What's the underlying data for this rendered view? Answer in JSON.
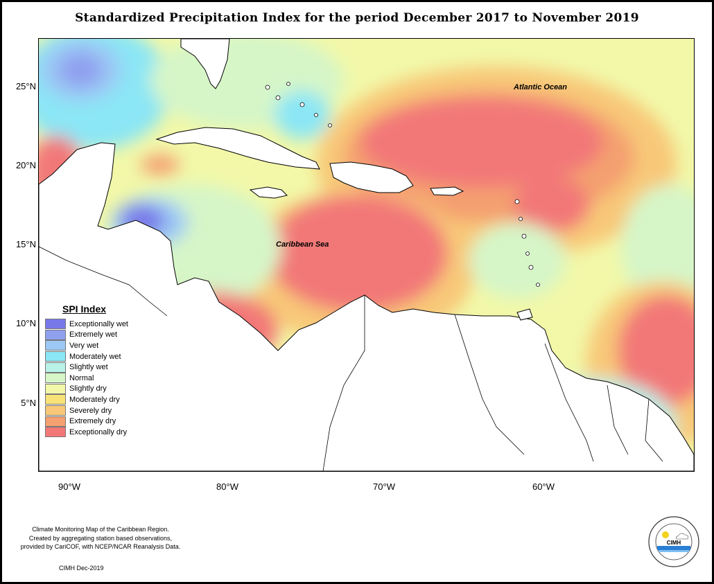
{
  "title": "Standardized Precipitation Index for the period December 2017 to November 2019",
  "axes": {
    "lat_labels": [
      "25°N",
      "20°N",
      "15°N",
      "10°N",
      "5°N"
    ],
    "lon_labels": [
      "90°W",
      "80°W",
      "70°W",
      "60°W"
    ]
  },
  "map_labels": {
    "atlantic": "Atlantic Ocean",
    "caribbean": "Caribbean Sea"
  },
  "legend": {
    "title": "SPI Index",
    "items": [
      {
        "label": "Exceptionally wet",
        "color": "#7878e8"
      },
      {
        "label": "Extremely wet",
        "color": "#8fa0ef"
      },
      {
        "label": "Very wet",
        "color": "#9cc8f5"
      },
      {
        "label": "Moderately wet",
        "color": "#8be6f5"
      },
      {
        "label": "Slightly wet",
        "color": "#b8f2e8"
      },
      {
        "label": "Normal",
        "color": "#d6f6c8"
      },
      {
        "label": "Slightly dry",
        "color": "#f2f8a8"
      },
      {
        "label": "Moderately dry",
        "color": "#f8e278"
      },
      {
        "label": "Severely dry",
        "color": "#f8c878"
      },
      {
        "label": "Extremely dry",
        "color": "#f4a070"
      },
      {
        "label": "Exceptionally dry",
        "color": "#f27878"
      }
    ]
  },
  "footer": {
    "line1": "Climate Monitoring Map of the Caribbean Region.",
    "line2": "Created by aggregating station based observations,",
    "line3": "provided by CariCOF, with NCEP/NCAR Reanalysis Data.",
    "date": "CIMH Dec-2019"
  },
  "logo": {
    "text": "CIMH",
    "ring_text": "Caribbean Institute for Meteorology and Hydrology"
  }
}
